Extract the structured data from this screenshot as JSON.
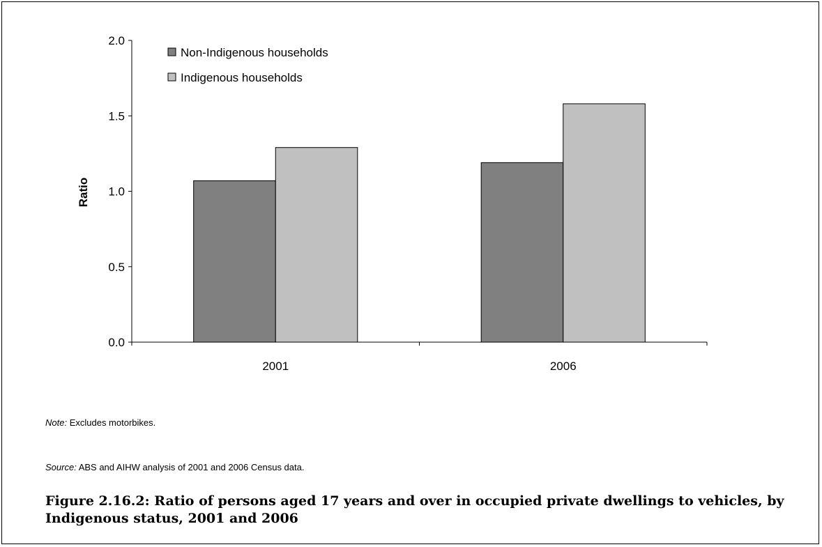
{
  "chart_data": {
    "type": "bar",
    "categories": [
      "2001",
      "2006"
    ],
    "series": [
      {
        "name": "Non-Indigenous households",
        "values": [
          1.07,
          1.19
        ],
        "color": "#808080"
      },
      {
        "name": "Indigenous households",
        "values": [
          1.29,
          1.58
        ],
        "color": "#c0c0c0"
      }
    ],
    "ylabel": "Ratio",
    "xlabel": "",
    "ylim": [
      0,
      2
    ],
    "yticks": [
      "0.0",
      "0.5",
      "1.0",
      "1.5",
      "2.0"
    ],
    "grid": false,
    "legend_position": "top-left"
  },
  "note": {
    "lead": "Note:",
    "text": " Excludes motorbikes."
  },
  "source": {
    "lead": "Source:",
    "text": " ABS and AIHW analysis of 2001 and 2006 Census data."
  },
  "caption": "Figure 2.16.2: Ratio of persons aged 17 years and over in occupied private dwellings to vehicles, by Indigenous status, 2001 and 2006"
}
